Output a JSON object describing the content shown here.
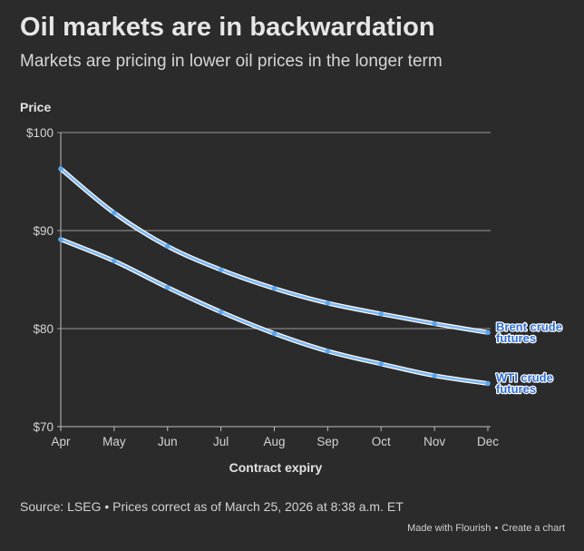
{
  "header": {
    "title": "Oil markets are in backwardation",
    "subtitle": "Markets are pricing in lower oil prices in the longer term"
  },
  "chart_data": {
    "type": "line",
    "title": "Oil markets are in backwardation",
    "subtitle": "Markets are pricing in lower oil prices in the longer term",
    "xlabel": "Contract expiry",
    "ylabel": "Price",
    "categories": [
      "Apr",
      "May",
      "Jun",
      "Jul",
      "Aug",
      "Sep",
      "Oct",
      "Nov",
      "Dec"
    ],
    "ylim": [
      70,
      100
    ],
    "yticks": [
      70,
      80,
      90,
      100
    ],
    "ytick_labels": [
      "$70",
      "$80",
      "$90",
      "$100"
    ],
    "grid": true,
    "series": [
      {
        "name": "Brent crude futures",
        "label_lines": [
          "Brent crude",
          "futures"
        ],
        "color": "#7fb8f2",
        "label_color": "#2f6fd6",
        "values": [
          96.3,
          91.8,
          88.4,
          86.0,
          84.1,
          82.6,
          81.5,
          80.5,
          79.6
        ]
      },
      {
        "name": "WTI crude futures",
        "label_lines": [
          "WTI crude",
          "futures"
        ],
        "color": "#7fb8f2",
        "label_color": "#2f6fd6",
        "values": [
          89.1,
          86.9,
          84.2,
          81.7,
          79.5,
          77.7,
          76.4,
          75.2,
          74.4
        ]
      }
    ]
  },
  "footer": {
    "source": "Source: LSEG • Prices correct as of March 25, 2026 at 8:38 a.m. ET",
    "made_with": "Made with Flourish",
    "separator": "•",
    "create_link": "Create a chart"
  }
}
